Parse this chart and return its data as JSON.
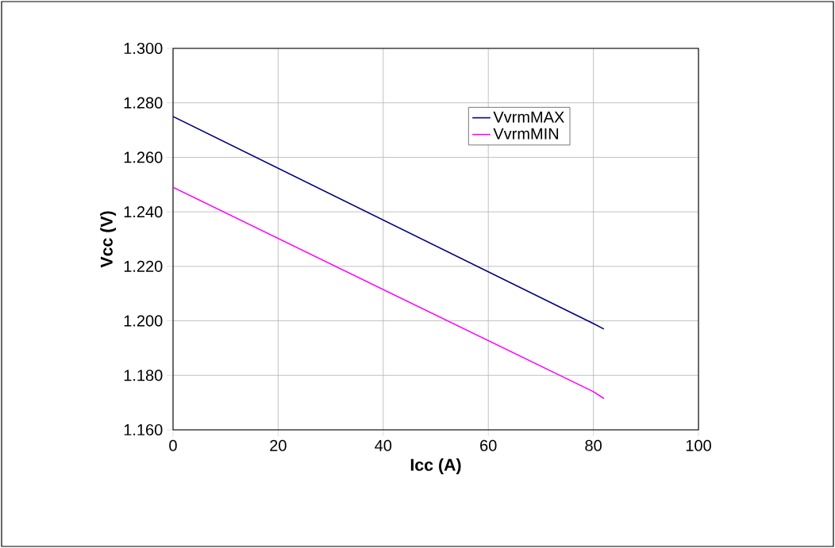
{
  "chart_data": {
    "type": "line",
    "xlabel": "Icc (A)",
    "ylabel": "Vcc (V)",
    "x": [
      0,
      80,
      82
    ],
    "series": [
      {
        "name": "VvrmMAX",
        "color": "#000080",
        "values": [
          1.275,
          1.199,
          1.197
        ]
      },
      {
        "name": "VvrmMIN",
        "color": "#ff00ff",
        "values": [
          1.249,
          1.174,
          1.1715
        ]
      }
    ],
    "xlim": [
      0,
      100
    ],
    "xticks": [
      0,
      20,
      40,
      60,
      80,
      100
    ],
    "ylim": [
      1.16,
      1.3
    ],
    "yticks": [
      {
        "value": 1.16,
        "label": "1.160"
      },
      {
        "value": 1.18,
        "label": "1.180"
      },
      {
        "value": 1.2,
        "label": "1.200"
      },
      {
        "value": 1.22,
        "label": "1.220"
      },
      {
        "value": 1.24,
        "label": "1.240"
      },
      {
        "value": 1.26,
        "label": "1.260"
      },
      {
        "value": 1.28,
        "label": "1.280"
      },
      {
        "value": 1.3,
        "label": "1.300"
      }
    ],
    "grid": true,
    "legend": "top right",
    "marker": "none",
    "line_style": "solid"
  }
}
